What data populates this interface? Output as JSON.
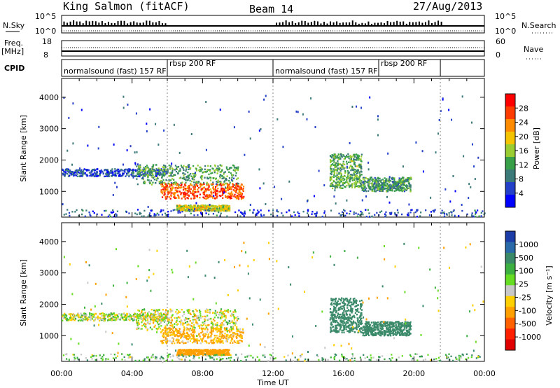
{
  "header": {
    "station": "King Salmon (fitACF)",
    "beam": "Beam 14",
    "date": "27/Aug/2013"
  },
  "top_panels": {
    "nsky_label": "N.Sky",
    "nsky_ticks": [
      "10^5",
      "10^0"
    ],
    "nsearch_label": "N.Search",
    "nsearch_ticks": [
      "10^5",
      "10^0"
    ],
    "freq_label": "Freq.",
    "freq_unit": "[MHz]",
    "freq_ticks": [
      "18",
      "8"
    ],
    "nave_label": "Nave",
    "nave_ticks": [
      "60",
      "0"
    ],
    "cpid_label": "CPID",
    "cpid_segments": [
      {
        "label": "normalsound (fast) 157 RF",
        "start_h": 0.0,
        "end_h": 6.0
      },
      {
        "label": "rbsp 200 RF",
        "start_h": 6.0,
        "end_h": 12.0
      },
      {
        "label": "normalsound (fast) 157 RF",
        "start_h": 12.0,
        "end_h": 18.0
      },
      {
        "label": "rbsp 200 RF",
        "start_h": 18.0,
        "end_h": 21.5
      }
    ]
  },
  "power_panel": {
    "ylabel": "Slant Range [km]",
    "yticks": [
      "1000",
      "2000",
      "3000",
      "4000"
    ],
    "colorbar_label": "Power [dB]",
    "colorbar_ticks": [
      "4",
      "8",
      "12",
      "16",
      "20",
      "24",
      "28"
    ],
    "colors": [
      "#0000ff",
      "#2540c8",
      "#3c7a7a",
      "#38a048",
      "#9acd32",
      "#f5c400",
      "#ff8c00",
      "#ff3c00",
      "#ff0000"
    ]
  },
  "velocity_panel": {
    "ylabel": "Slant Range [km]",
    "yticks": [
      "1000",
      "2000",
      "3000",
      "4000"
    ],
    "colorbar_label": "Velocity [m s⁻¹]",
    "colorbar_ticks": [
      "1000",
      "500",
      "100",
      "25",
      "-25",
      "-100",
      "-500",
      "-1000"
    ],
    "colors": [
      "#1c3ca8",
      "#2a6aa8",
      "#3a8a6a",
      "#3cb040",
      "#66dd22",
      "#c8c8c8",
      "#ffd000",
      "#ffa000",
      "#ff6000",
      "#ff2000",
      "#e00000"
    ]
  },
  "xaxis": {
    "label": "Time UT",
    "ticks": [
      "00:00",
      "04:00",
      "08:00",
      "12:00",
      "16:00",
      "20:00",
      "00:00"
    ]
  },
  "chart_data": {
    "type": "heatmap",
    "title": "King Salmon (fitACF)  Beam 14  27/Aug/2013",
    "xlabel": "Time UT",
    "ylabel": "Slant Range [km]",
    "xlim": [
      0,
      24
    ],
    "ylim": [
      180,
      4600
    ],
    "features": [
      {
        "name": "band_a",
        "t0": 0.0,
        "t1": 6.0,
        "r0": 1480,
        "r1": 1720,
        "power": 6,
        "velocity": -10
      },
      {
        "name": "band_b",
        "t0": 4.2,
        "t1": 10.0,
        "r0": 1200,
        "r1": 1850,
        "power": 12,
        "velocity": -20
      },
      {
        "name": "core",
        "t0": 5.6,
        "t1": 10.3,
        "r0": 760,
        "r1": 1250,
        "power": 26,
        "velocity": -80
      },
      {
        "name": "lower",
        "t0": 6.5,
        "t1": 9.5,
        "r0": 380,
        "r1": 560,
        "power": 18,
        "velocity": -150
      },
      {
        "name": "east_a",
        "t0": 15.2,
        "t1": 17.0,
        "r0": 1100,
        "r1": 2200,
        "power": 13,
        "velocity": 200
      },
      {
        "name": "east_b",
        "t0": 17.0,
        "t1": 19.8,
        "r0": 1000,
        "r1": 1450,
        "power": 11,
        "velocity": 150
      },
      {
        "name": "floor",
        "t0": 0.0,
        "t1": 24.0,
        "r0": 200,
        "r1": 420,
        "power": 6,
        "velocity": 30
      }
    ]
  }
}
